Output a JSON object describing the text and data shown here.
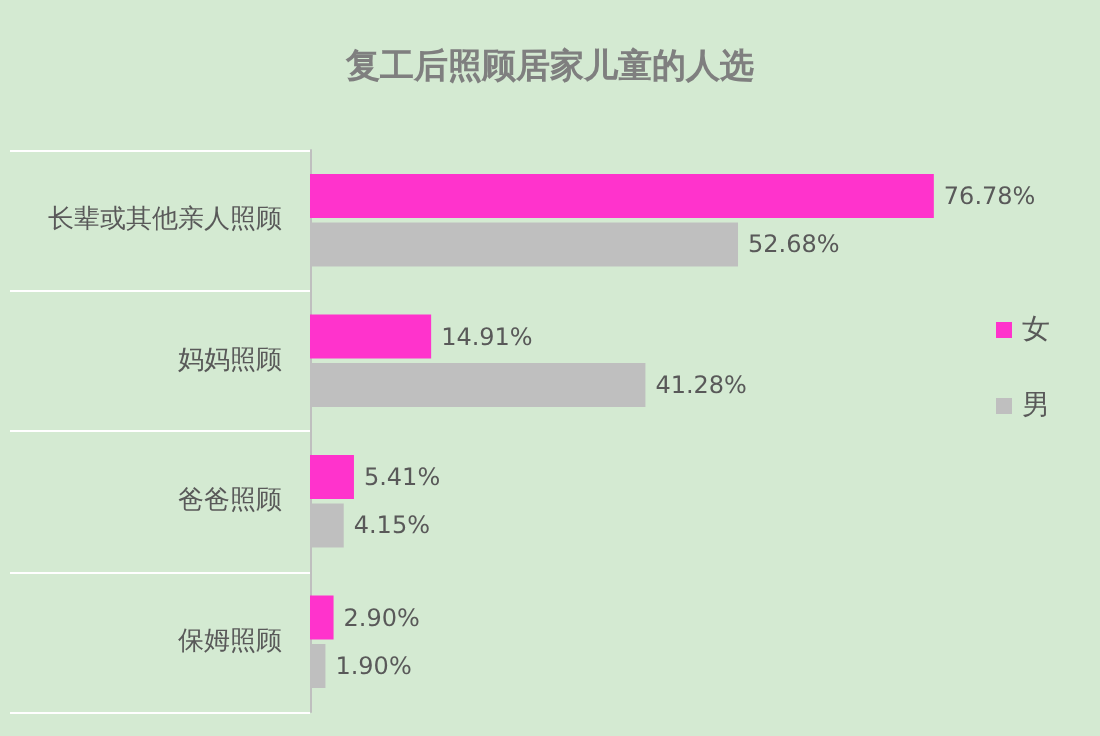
{
  "chart_data": {
    "type": "bar",
    "title": "复工后照顾居家儿童的人选",
    "orientation": "horizontal",
    "categories": [
      "长辈或其他亲人照顾",
      "妈妈照顾",
      "爸爸照顾",
      "保姆照顾"
    ],
    "series": [
      {
        "name": "女",
        "color": "#ff33cc",
        "values": [
          76.78,
          14.91,
          5.41,
          2.9
        ],
        "value_labels": [
          "76.78%",
          "14.91%",
          "5.41%",
          "2.90%"
        ]
      },
      {
        "name": "男",
        "color": "#bfbfbf",
        "values": [
          52.68,
          41.28,
          4.15,
          1.9
        ],
        "value_labels": [
          "52.68%",
          "41.28%",
          "4.15%",
          "1.90%"
        ]
      }
    ],
    "legend": "right"
  }
}
